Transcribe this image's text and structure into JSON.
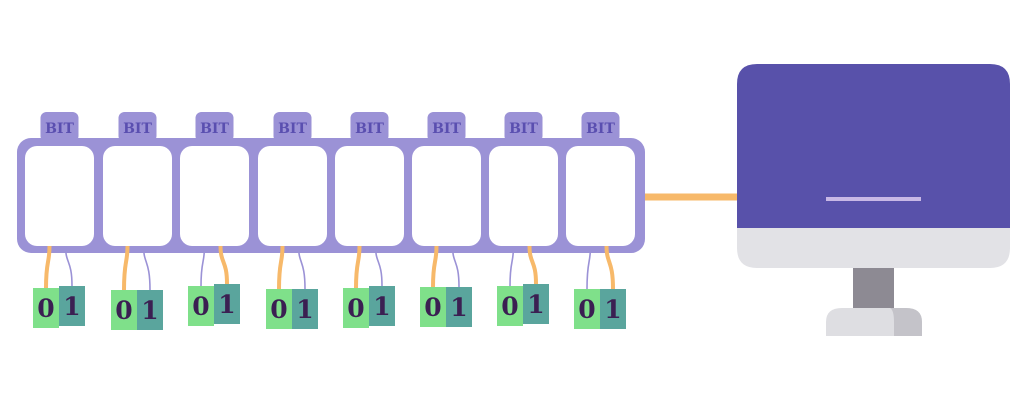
{
  "register": {
    "cells": [
      {
        "label": "BIT",
        "zero": "0",
        "one": "1",
        "state": 0
      },
      {
        "label": "BIT",
        "zero": "0",
        "one": "1",
        "state": 0
      },
      {
        "label": "BIT",
        "zero": "0",
        "one": "1",
        "state": 1
      },
      {
        "label": "BIT",
        "zero": "0",
        "one": "1",
        "state": 0
      },
      {
        "label": "BIT",
        "zero": "0",
        "one": "1",
        "state": 0
      },
      {
        "label": "BIT",
        "zero": "0",
        "one": "1",
        "state": 0
      },
      {
        "label": "BIT",
        "zero": "0",
        "one": "1",
        "state": 1
      },
      {
        "label": "BIT",
        "zero": "0",
        "one": "1",
        "state": 1
      }
    ]
  },
  "computer": {
    "icon": "desktop-monitor-icon"
  },
  "colors": {
    "register_frame": "#9b92d6",
    "label_tab": "#9b92d6",
    "label_text": "#5a4fb0",
    "cell_fill": "#ffffff",
    "zero_card": "#7fe08a",
    "one_card": "#5aa59d",
    "digit_text": "#3b1f52",
    "wire_orange": "#f7b96a",
    "wire_purple": "#9b92d6",
    "monitor_screen": "#5851aa",
    "monitor_bezel": "#e2e2e6",
    "monitor_stand": "#8d8a93",
    "monitor_base": "#dedee2",
    "monitor_base_shadow": "#c4c3c9",
    "screen_bar": "#c8b8e6",
    "connector": "#f7b96a"
  }
}
